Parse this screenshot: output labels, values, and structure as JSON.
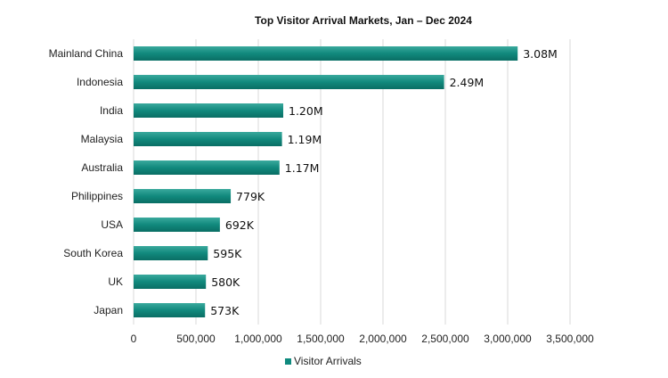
{
  "chart_data": {
    "type": "bar",
    "orientation": "horizontal",
    "title": "Top Visitor Arrival Markets, Jan – Dec 2024",
    "categories": [
      "Mainland China",
      "Indonesia",
      "India",
      "Malaysia",
      "Australia",
      "Philippines",
      "USA",
      "South Korea",
      "UK",
      "Japan"
    ],
    "series": [
      {
        "name": "Visitor Arrivals",
        "values": [
          3080000,
          2490000,
          1200000,
          1190000,
          1170000,
          779000,
          692000,
          595000,
          580000,
          573000
        ],
        "labels": [
          "3.08M",
          "2.49M",
          "1.20M",
          "1.19M",
          "1.17M",
          "779K",
          "692K",
          "595K",
          "580K",
          "573K"
        ]
      }
    ],
    "xlim": [
      0,
      3500000
    ],
    "xticks": [
      0,
      500000,
      1000000,
      1500000,
      2000000,
      2500000,
      3000000,
      3500000
    ],
    "xtick_labels": [
      "0",
      "500,000",
      "1,000,000",
      "1,500,000",
      "2,000,000",
      "2,500,000",
      "3,000,000",
      "3,500,000"
    ],
    "xlabel": "",
    "ylabel": "",
    "grid": "vertical",
    "legend_position": "bottom",
    "bar_color": "#0f8a7e"
  }
}
